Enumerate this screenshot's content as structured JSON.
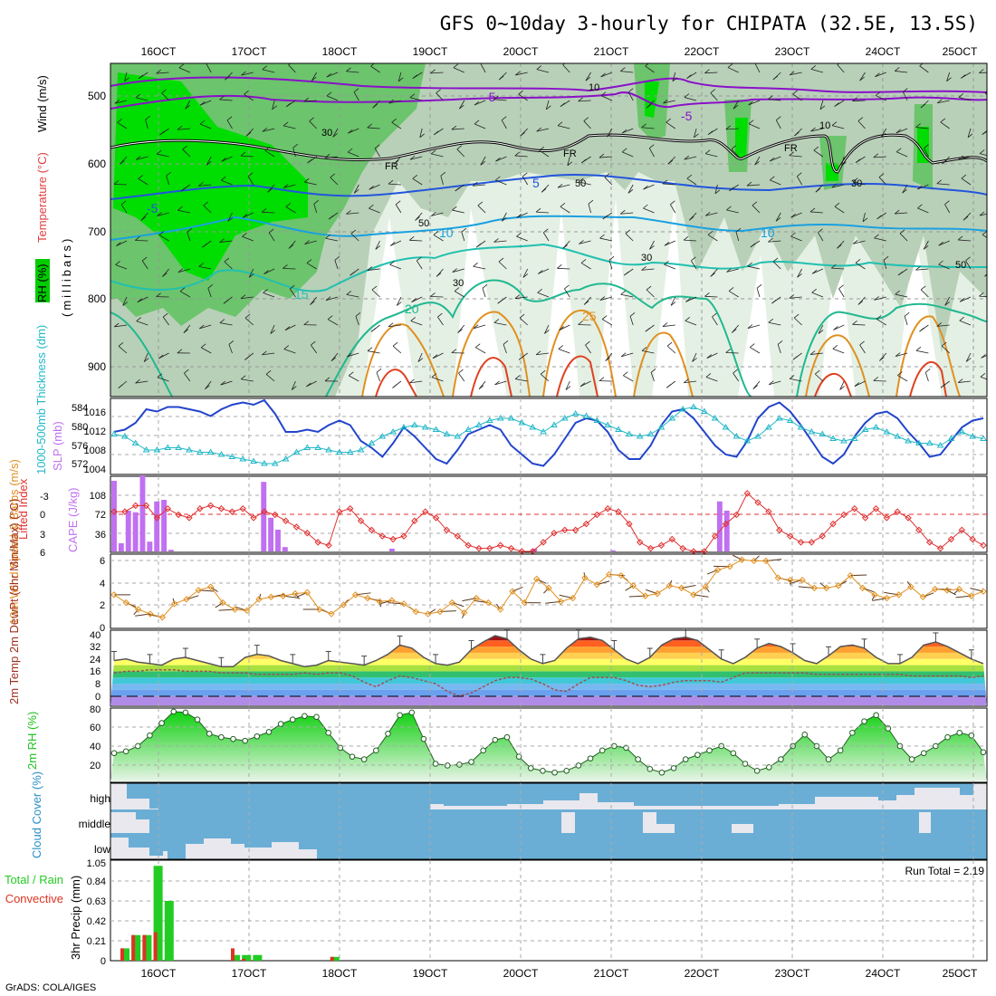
{
  "title": "GFS 0~10day 3-hourly for CHIPATA (32.5E, 13.5S)",
  "credit": "GrADS: COLA/IGES",
  "colors": {
    "rh_dark": "#00d400",
    "rh_mid": "#55c055",
    "rh_light": "#b8d8b8",
    "rh_pale": "#e4f0e4",
    "slp": "#2244cc",
    "thickness": "#22b8c8",
    "cape": "#c070f0",
    "lifted_index": "#e03030",
    "wind_speed": "#e09020",
    "barbs": "#5a3820",
    "rh2m": "#20c020",
    "cloud_sky": "#6aaed6",
    "cloud": "#e6e6e6",
    "precip_total": "#22cc22",
    "precip_conv": "#dd3322"
  },
  "chart_data": [
    {
      "panel": "upper-air",
      "type": "heatmap",
      "x": [
        "16OCT",
        "17OCT",
        "18OCT",
        "19OCT",
        "20OCT",
        "21OCT",
        "22OCT",
        "23OCT",
        "24OCT",
        "25OCT"
      ],
      "y_ticks": [
        500,
        600,
        700,
        800,
        900
      ],
      "ylim": [
        950,
        450
      ],
      "ylabel_parts": [
        "RH (%)",
        "Temperature (°C)",
        "Wind (m/s)"
      ],
      "ylabel_unit": "(millibars)",
      "contour_labels": [
        "-5",
        "-5",
        "5",
        "-5",
        "10",
        "10",
        "15",
        "20",
        "25",
        "FR",
        "FR",
        "FR",
        "10",
        "30",
        "50",
        "50",
        "30",
        "30",
        "10",
        "30",
        "50"
      ],
      "freezing_level": "FR"
    },
    {
      "panel": "slp-thickness",
      "type": "line",
      "left_axis": {
        "label": "1000-500mb Thickness (dm)",
        "ticks": [
          "572",
          "576",
          "580",
          "584"
        ],
        "ylim": [
          570,
          586
        ]
      },
      "right_axis": {
        "label": "SLP (mb)",
        "ticks": [
          "1004",
          "1008",
          "1012",
          "1016"
        ],
        "ylim": [
          1002,
          1018
        ]
      },
      "series": [
        {
          "name": "SLP (mb)",
          "values": [
            1011,
            1011.5,
            1013,
            1016,
            1015.5,
            1016.5,
            1016.5,
            1016,
            1015.5,
            1014.5,
            1016,
            1017,
            1017.5,
            1017,
            1018,
            1015,
            1011,
            1011,
            1011.5,
            1011,
            1012.5,
            1013.5,
            1012.5,
            1009,
            1007.5,
            1005.5,
            1008.5,
            1012,
            1010,
            1007.5,
            1005,
            1004,
            1007,
            1010.5,
            1011.5,
            1012.5,
            1011.5,
            1008,
            1006,
            1004,
            1003.5,
            1006,
            1009.5,
            1013,
            1014,
            1013.5,
            1011,
            1007,
            1005,
            1005,
            1008,
            1012.5,
            1015.5,
            1016,
            1014,
            1011,
            1008,
            1006,
            1005.5,
            1009,
            1014,
            1016.5,
            1017.5,
            1015.5,
            1012.5,
            1009,
            1005.5,
            1004,
            1006,
            1010,
            1013,
            1015,
            1015.5,
            1014,
            1011,
            1008.5,
            1005.5,
            1006,
            1009,
            1012,
            1013.5,
            1014
          ]
        },
        {
          "name": "1000-500mb Thickness (dm)",
          "values": [
            578.5,
            578,
            576.5,
            575,
            575,
            575.5,
            575.5,
            575,
            574.5,
            574.5,
            574,
            573.5,
            573,
            572.5,
            572,
            572,
            573,
            574.5,
            575.5,
            575.5,
            575,
            574.5,
            574.5,
            575,
            576.5,
            578,
            579,
            580,
            580.5,
            580,
            579.5,
            578.5,
            578,
            579.5,
            580.5,
            581.5,
            582,
            582,
            581,
            580,
            579,
            580.5,
            582,
            583,
            582.5,
            581.5,
            580.5,
            579.5,
            578.5,
            578,
            578.5,
            580,
            582,
            584,
            584.5,
            583.5,
            582,
            580,
            578,
            577,
            578,
            580,
            582,
            581.5,
            580,
            579,
            578.5,
            577.5,
            577,
            577.5,
            579.5,
            580,
            579,
            578,
            577,
            576.5,
            576.5,
            576,
            577.5,
            579,
            578,
            577.5
          ]
        }
      ]
    },
    {
      "panel": "cape-lifted-index",
      "type": "bar",
      "left_axis": {
        "label": "Lifted Index",
        "ticks": [
          "-3",
          "0",
          "3",
          "6"
        ],
        "ylim": [
          -6,
          6
        ]
      },
      "right_axis": {
        "label": "CAPE (J/kg)",
        "ticks": [
          "36",
          "72",
          "108"
        ],
        "ylim": [
          0,
          135
        ]
      },
      "series": [
        {
          "name": "CAPE (J/kg)",
          "values": [
            130,
            15,
            75,
            72,
            140,
            18,
            92,
            95,
            3,
            0,
            0,
            0,
            0,
            0,
            0,
            0,
            0,
            0,
            0,
            0,
            0,
            128,
            62,
            40,
            8,
            0,
            0,
            0,
            0,
            0,
            0,
            0,
            0,
            0,
            0,
            0,
            0,
            0,
            0,
            5,
            0,
            0,
            0,
            0,
            0,
            0,
            0,
            0,
            0,
            0,
            0,
            0,
            0,
            0,
            0,
            0,
            0,
            0,
            0,
            5,
            0,
            0,
            0,
            0,
            0,
            0,
            0,
            0,
            0,
            0,
            2,
            0,
            0,
            0,
            0,
            0,
            0,
            0,
            0,
            0,
            0,
            0,
            0,
            0,
            0,
            92,
            75,
            0,
            0,
            0,
            0,
            0,
            0,
            0,
            0,
            0,
            0,
            0,
            0,
            0,
            0,
            0,
            0,
            0,
            0,
            0,
            0,
            0,
            0,
            0,
            0,
            0,
            0,
            0,
            0,
            0,
            0,
            0,
            0,
            0,
            0,
            0,
            0
          ]
        },
        {
          "name": "Lifted Index",
          "values": [
            -0.5,
            -0.5,
            -1.5,
            -1.5,
            0.5,
            -1,
            0,
            0.5,
            -1,
            -1.5,
            -1,
            -0.5,
            -1,
            0.5,
            -0.5,
            0,
            1,
            2,
            3,
            4.5,
            5,
            -0.5,
            -1,
            1,
            2.5,
            3.5,
            4,
            3.5,
            1,
            -0.5,
            0.5,
            2.5,
            3.5,
            5,
            5.5,
            5.5,
            5,
            5.5,
            6,
            6,
            4.5,
            3,
            2.5,
            2.5,
            1.5,
            0,
            -1,
            -0.5,
            1.5,
            4.5,
            5.5,
            5,
            4,
            5.5,
            6,
            6,
            3.5,
            1.5,
            0,
            -3.5,
            -2,
            -0.5,
            2.5,
            3.5,
            4.5,
            4.5,
            3.5,
            1.5,
            0,
            -1,
            0.5,
            -1,
            0.5,
            -0.5,
            0.5,
            2.5,
            4.5,
            5.5,
            4,
            2.5,
            4,
            5
          ]
        }
      ]
    },
    {
      "panel": "10m-wind",
      "type": "line",
      "ylabel": "10m Wind Speed & Barbs (m/s)",
      "y_ticks": [
        "0",
        "2",
        "4",
        "6"
      ],
      "ylim": [
        0,
        6.5
      ],
      "series": [
        {
          "name": "Speed",
          "values": [
            2.9,
            2.2,
            1.6,
            1.2,
            0.9,
            2.1,
            2.5,
            3.3,
            3.6,
            2.2,
            1.6,
            1.5,
            2.5,
            2.7,
            2.8,
            3.0,
            3.1,
            1.6,
            1.2,
            2.0,
            2.9,
            2.6,
            2.3,
            2.4,
            2.1,
            1.4,
            1.2,
            1.4,
            2.2,
            1.3,
            2.6,
            2.2,
            1.6,
            3.2,
            2.2,
            4.3,
            3.5,
            2.3,
            2.6,
            4.4,
            3.8,
            4.7,
            4.6,
            3.7,
            2.8,
            3.0,
            3.7,
            3.5,
            2.9,
            3.6,
            5.1,
            5.4,
            6.0,
            5.9,
            5.9,
            4.4,
            4.2,
            4.2,
            3.5,
            3.5,
            3.7,
            4.6,
            3.5,
            2.9,
            2.6,
            2.9,
            3.6,
            2.7,
            3.4,
            3.3,
            3.4,
            2.8,
            3.2
          ]
        }
      ]
    },
    {
      "panel": "2m-temperature",
      "type": "area",
      "ylabel": "2m Temp 2m DewPt (6hr Min/Max) (°C)",
      "y_ticks": [
        "0",
        "8",
        "16",
        "24",
        "32",
        "40"
      ],
      "ylim": [
        -6,
        42
      ],
      "series": [
        {
          "name": "2m Temp",
          "values": [
            23,
            24,
            22,
            21,
            20,
            24,
            25,
            23,
            21,
            19,
            19,
            25,
            27,
            26,
            23,
            21,
            19,
            20,
            23,
            22,
            21,
            20,
            23,
            27,
            33,
            31,
            25,
            21,
            20,
            22,
            30,
            35,
            39,
            37,
            30,
            24,
            21,
            23,
            31,
            37,
            38,
            36,
            30,
            24,
            21,
            25,
            33,
            37,
            38,
            36,
            30,
            24,
            21,
            25,
            31,
            34,
            32,
            28,
            23,
            21,
            26,
            32,
            33,
            31,
            25,
            21,
            21,
            25,
            33,
            35,
            32,
            28,
            24,
            21
          ]
        },
        {
          "name": "2m DewPt",
          "values": [
            15,
            16,
            16,
            17,
            17,
            17,
            16,
            16,
            16,
            15,
            15,
            15,
            14,
            14,
            14,
            14,
            15,
            14,
            15,
            15,
            13,
            9,
            6,
            10,
            13,
            12,
            10,
            8,
            3,
            0,
            2,
            6,
            10,
            12,
            12,
            11,
            8,
            4,
            3,
            8,
            12,
            12,
            12,
            10,
            7,
            6,
            7,
            9,
            10,
            10,
            10,
            9,
            12,
            15,
            15,
            15,
            15,
            15,
            15,
            14,
            14,
            14,
            14,
            14,
            14,
            14,
            14,
            13,
            13,
            13,
            13,
            13,
            12,
            13
          ]
        }
      ]
    },
    {
      "panel": "2m-rh",
      "type": "area",
      "ylabel": "2m RH (%)",
      "y_ticks": [
        "20",
        "40",
        "60",
        "80"
      ],
      "ylim": [
        0,
        82
      ],
      "series": [
        {
          "name": "2m RH",
          "values": [
            32,
            34,
            40,
            52,
            66,
            79,
            78,
            70,
            54,
            50,
            48,
            46,
            51,
            56,
            65,
            70,
            74,
            73,
            55,
            38,
            28,
            25,
            35,
            54,
            75,
            78,
            48,
            20,
            18,
            19,
            22,
            35,
            47,
            50,
            28,
            15,
            12,
            10,
            12,
            18,
            26,
            35,
            40,
            38,
            25,
            14,
            10,
            15,
            25,
            30,
            35,
            40,
            32,
            20,
            12,
            16,
            25,
            40,
            53,
            40,
            25,
            35,
            55,
            68,
            75,
            60,
            40,
            25,
            32,
            40,
            50,
            55,
            52,
            33
          ]
        }
      ]
    },
    {
      "panel": "cloud-cover",
      "type": "area",
      "ylabel": "Cloud Cover (%)",
      "levels": [
        "high",
        "middle",
        "low"
      ]
    },
    {
      "panel": "3hr-precip",
      "type": "bar",
      "ylabel": "3hr Precip (mm)",
      "legend": [
        "Total / Rain",
        "Convective"
      ],
      "y_ticks": [
        "0",
        "0.21",
        "0.42",
        "0.63",
        "0.84",
        "1.05"
      ],
      "ylim": [
        0,
        1.05
      ],
      "run_total": "Run Total = 2.19",
      "series": [
        {
          "name": "Total / Rain",
          "values": [
            0.13,
            0.27,
            0.27,
            1.0,
            0.63,
            0,
            0,
            0,
            0,
            0,
            0.06,
            0.06,
            0.06,
            0,
            0,
            0,
            0,
            0,
            0,
            0.04,
            0,
            0,
            0,
            0,
            0,
            0,
            0,
            0,
            0,
            0,
            0,
            0,
            0,
            0,
            0,
            0,
            0,
            0,
            0,
            0,
            0,
            0,
            0,
            0,
            0,
            0,
            0,
            0,
            0,
            0,
            0,
            0,
            0,
            0,
            0,
            0,
            0,
            0,
            0,
            0,
            0,
            0,
            0,
            0,
            0,
            0,
            0,
            0,
            0,
            0,
            0,
            0,
            0,
            0,
            0,
            0,
            0,
            0,
            0,
            0,
            0
          ]
        },
        {
          "name": "Convective",
          "values": [
            0.13,
            0.27,
            0.27,
            0.3,
            0,
            0,
            0,
            0,
            0,
            0,
            0.13,
            0.02,
            0,
            0,
            0,
            0,
            0,
            0,
            0,
            0.04,
            0,
            0,
            0,
            0,
            0,
            0,
            0,
            0,
            0,
            0,
            0,
            0,
            0,
            0,
            0,
            0,
            0,
            0,
            0,
            0,
            0,
            0,
            0,
            0,
            0,
            0,
            0,
            0,
            0,
            0,
            0,
            0,
            0,
            0,
            0,
            0,
            0,
            0,
            0,
            0,
            0,
            0,
            0,
            0,
            0,
            0,
            0,
            0,
            0,
            0,
            0,
            0,
            0,
            0,
            0,
            0,
            0,
            0,
            0,
            0,
            0
          ]
        }
      ]
    }
  ],
  "top_ticks": [
    "16OCT",
    "17OCT",
    "18OCT",
    "19OCT",
    "20OCT",
    "21OCT",
    "22OCT",
    "23OCT",
    "24OCT",
    "25OCT"
  ],
  "bottom_ticks": [
    "16OCT",
    "17OCT",
    "18OCT",
    "19OCT",
    "20OCT",
    "21OCT",
    "22OCT",
    "23OCT",
    "24OCT",
    "25OCT"
  ]
}
